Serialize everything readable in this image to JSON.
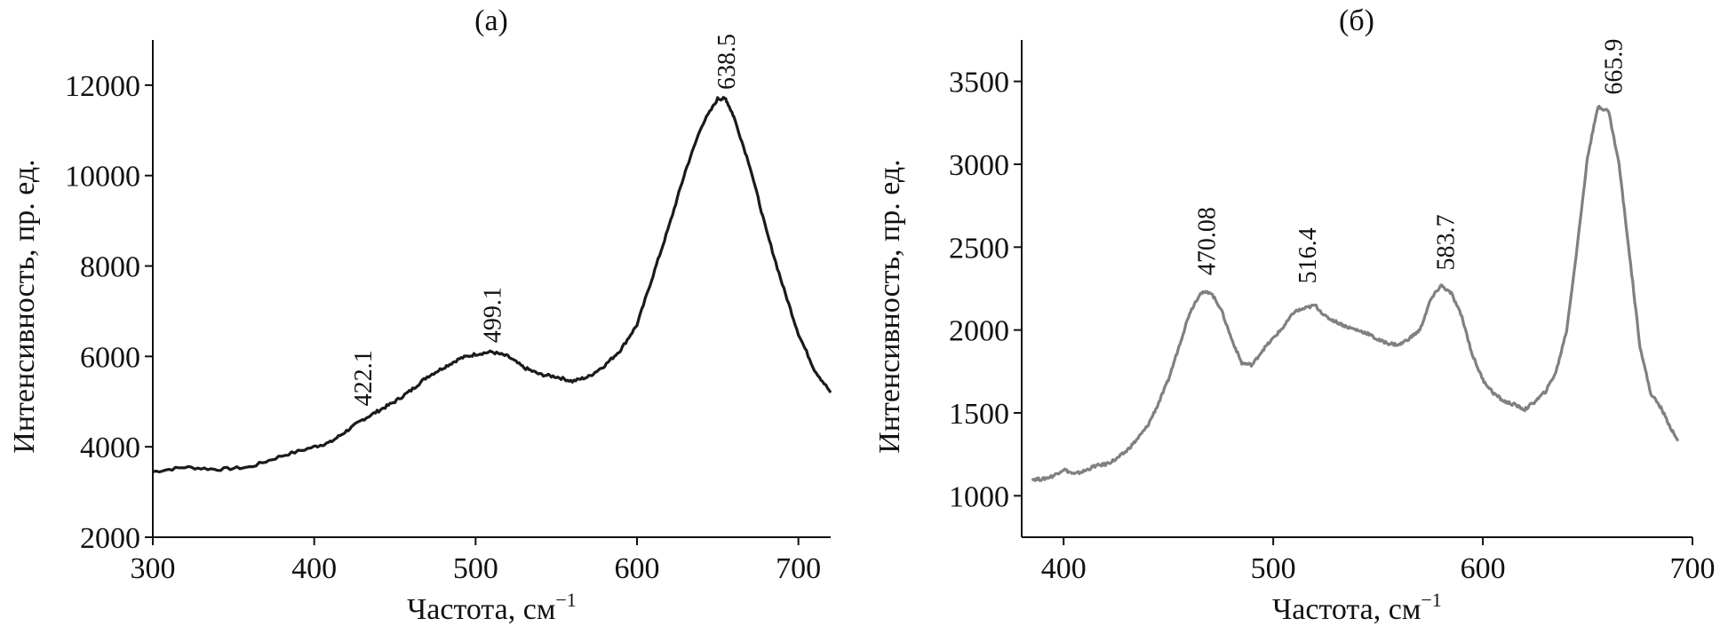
{
  "chart_data": [
    {
      "type": "line",
      "title": "(а)",
      "xlabel": "Частота, см",
      "xlabel_sup": "−1",
      "ylabel": "Интенсивность, пр. ед.",
      "xlim": [
        300,
        720
      ],
      "ylim": [
        2000,
        13000
      ],
      "xticks": [
        "300",
        "400",
        "500",
        "600",
        "700"
      ],
      "yticks": [
        "2000",
        "4000",
        "6000",
        "8000",
        "10000",
        "12000"
      ],
      "line_color": "#1a1a1a",
      "series": [
        {
          "x": [
            300,
            320,
            340,
            360,
            380,
            400,
            410,
            420,
            430,
            440,
            450,
            460,
            470,
            480,
            490,
            500,
            510,
            520,
            530,
            540,
            550,
            560,
            570,
            580,
            590,
            600,
            610,
            620,
            630,
            640,
            650,
            655,
            660,
            670,
            680,
            690,
            700,
            710,
            720
          ],
          "y": [
            3450,
            3550,
            3500,
            3550,
            3800,
            4000,
            4100,
            4350,
            4600,
            4800,
            5000,
            5250,
            5550,
            5750,
            5950,
            6050,
            6100,
            6000,
            5750,
            5600,
            5550,
            5450,
            5550,
            5800,
            6150,
            6700,
            7800,
            8900,
            10100,
            11100,
            11700,
            11700,
            11300,
            10200,
            8800,
            7600,
            6500,
            5700,
            5200
          ]
        }
      ],
      "peak_labels": [
        {
          "text": "422.1",
          "x": 430,
          "y": 4900
        },
        {
          "text": "499.1",
          "x": 510,
          "y": 6300
        },
        {
          "text": "638.5",
          "x": 655,
          "y": 11900
        }
      ]
    },
    {
      "type": "line",
      "title": "(б)",
      "xlabel": "Частота, см",
      "xlabel_sup": "−1",
      "ylabel": "Интенсивность, пр. ед.",
      "xlim": [
        380,
        700
      ],
      "ylim": [
        750,
        3750
      ],
      "xticks": [
        "400",
        "500",
        "600",
        "700"
      ],
      "yticks": [
        "1000",
        "1500",
        "2000",
        "2500",
        "3000",
        "3500"
      ],
      "line_color": "#808080",
      "series": [
        {
          "x": [
            385,
            390,
            395,
            400,
            405,
            410,
            415,
            420,
            425,
            430,
            435,
            440,
            445,
            450,
            455,
            460,
            465,
            470,
            475,
            480,
            485,
            490,
            495,
            500,
            505,
            510,
            515,
            520,
            525,
            530,
            535,
            540,
            545,
            550,
            555,
            560,
            565,
            570,
            575,
            580,
            585,
            590,
            595,
            600,
            605,
            610,
            615,
            620,
            625,
            630,
            635,
            640,
            645,
            650,
            655,
            660,
            665,
            670,
            675,
            680,
            685,
            690,
            693
          ],
          "y": [
            1100,
            1100,
            1120,
            1160,
            1130,
            1150,
            1180,
            1190,
            1220,
            1270,
            1340,
            1420,
            1550,
            1700,
            1900,
            2100,
            2220,
            2230,
            2130,
            1950,
            1800,
            1790,
            1880,
            1950,
            2020,
            2110,
            2130,
            2150,
            2080,
            2050,
            2020,
            2000,
            1980,
            1940,
            1920,
            1910,
            1950,
            2000,
            2180,
            2270,
            2220,
            2080,
            1850,
            1700,
            1620,
            1570,
            1550,
            1520,
            1570,
            1630,
            1750,
            2000,
            2500,
            3050,
            3350,
            3320,
            3000,
            2450,
            1900,
            1620,
            1530,
            1400,
            1330
          ]
        }
      ],
      "peak_labels": [
        {
          "text": "470.08",
          "x": 468,
          "y": 2330
        },
        {
          "text": "516.4",
          "x": 516,
          "y": 2280
        },
        {
          "text": "583.7",
          "x": 582,
          "y": 2360
        },
        {
          "text": "665.9",
          "x": 662,
          "y": 3420
        }
      ]
    }
  ]
}
